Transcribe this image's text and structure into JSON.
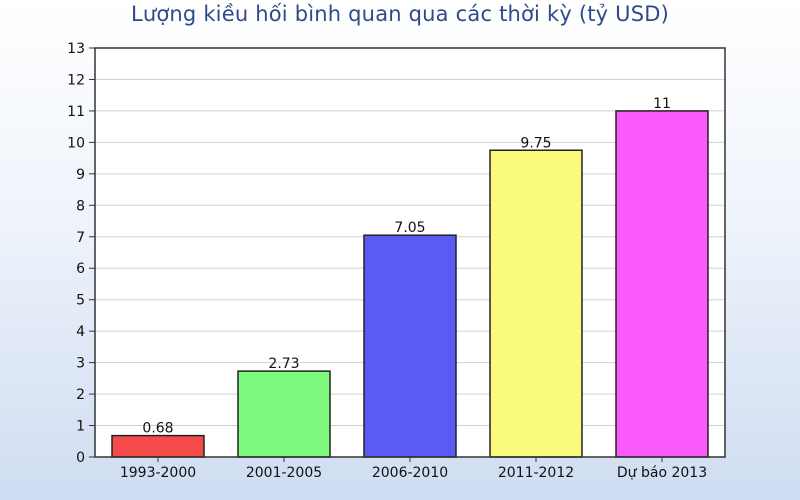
{
  "chart_data": {
    "type": "bar",
    "title": "Lượng kiều hối bình quan qua các thời kỳ (tỷ USD)",
    "categories": [
      "1993-2000",
      "2001-2005",
      "2006-2010",
      "2011-2012",
      "Dự báo  2013"
    ],
    "values": [
      0.68,
      2.73,
      7.05,
      9.75,
      11
    ],
    "value_labels": [
      "0.68",
      "2.73",
      "7.05",
      "9.75",
      "11"
    ],
    "bar_colors": [
      "#f44a4a",
      "#7dfa7d",
      "#5a5af5",
      "#fafa7d",
      "#fa5afa"
    ],
    "ylim": [
      0,
      13
    ],
    "yticks": [
      0,
      1,
      2,
      3,
      4,
      5,
      6,
      7,
      8,
      9,
      10,
      11,
      12,
      13
    ],
    "xlabel": "",
    "ylabel": "",
    "grid": true,
    "legend": "none"
  },
  "colors": {
    "title": "#2f4a8a",
    "grid": "#d0d0d0",
    "axis": "#333333",
    "plot_background": "#ffffff"
  }
}
